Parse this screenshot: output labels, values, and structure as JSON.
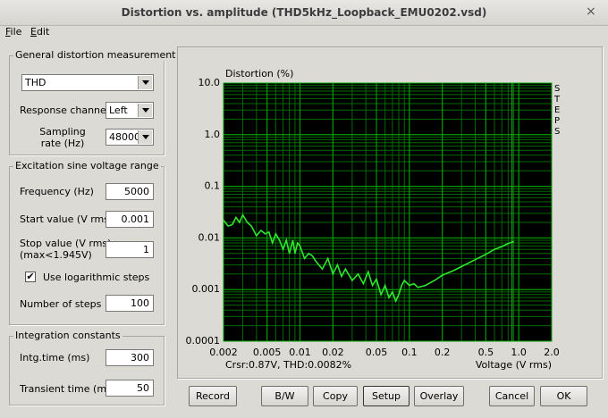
{
  "window": {
    "title": "Distortion vs. amplitude (THD5kHz_Loopback_EMU0202.vsd)",
    "close": "×"
  },
  "menu": [
    "File",
    "Edit"
  ],
  "general": {
    "legend": "General distortion measurement",
    "measurement": "THD",
    "channel_label": "Response channel",
    "channel": "Left",
    "rate_label": "Sampling rate (Hz)",
    "rate": 48000
  },
  "excitation": {
    "legend": "Excitation sine voltage range",
    "frequency_label": "Frequency (Hz)",
    "frequency": 5000,
    "start_label": "Start value (V rms)",
    "start": 0.001,
    "stop_label": "Stop value (V rms)",
    "stop_note": "(max<1.945V)",
    "stop": 1,
    "log_label": "Use logarithmic steps",
    "log_checked": true,
    "steps_label": "Number of steps",
    "steps": 100
  },
  "integration": {
    "legend": "Integration constants",
    "intg_label": "Intg.time (ms)",
    "intg": 300,
    "transient_label": "Transient time (ms)",
    "transient": 50
  },
  "buttons": [
    "Record",
    "B/W",
    "Copy",
    "Setup",
    "Overlay",
    "Cancel",
    "OK"
  ],
  "chart_data": {
    "type": "line",
    "ylabel": "Distortion (%)",
    "xlabel": "Voltage (V rms)",
    "side_label": "STEPS",
    "xscale": "log",
    "yscale": "log",
    "grid": true,
    "color": "#2ee82e",
    "xlim": [
      0.002,
      2
    ],
    "ylim": [
      0.0001,
      10
    ],
    "xticks": [
      0.002,
      0.005,
      0.01,
      0.02,
      0.05,
      0.1,
      0.2,
      0.5,
      {
        "value": 1,
        "label": "1.0"
      },
      {
        "value": 2,
        "label": "2.0"
      }
    ],
    "yticks": [
      {
        "value": 10,
        "label": "10.0"
      },
      {
        "value": 1,
        "label": "1.0"
      },
      0.1,
      0.01,
      0.001,
      0.0001
    ],
    "cursor": {
      "x": 0.87,
      "label": "Crsr:0.87V, THD:0.0082%"
    },
    "x": [
      0.002,
      0.0022,
      0.0024,
      0.0026,
      0.0028,
      0.003,
      0.0033,
      0.0036,
      0.004,
      0.0044,
      0.0048,
      0.0052,
      0.0056,
      0.006,
      0.0065,
      0.007,
      0.0075,
      0.008,
      0.0086,
      0.009,
      0.0095,
      0.01,
      0.011,
      0.012,
      0.013,
      0.014,
      0.016,
      0.018,
      0.02,
      0.022,
      0.024,
      0.026,
      0.03,
      0.034,
      0.038,
      0.042,
      0.046,
      0.05,
      0.055,
      0.06,
      0.065,
      0.07,
      0.075,
      0.08,
      0.085,
      0.09,
      0.1,
      0.11,
      0.12,
      0.14,
      0.17,
      0.2,
      0.25,
      0.3,
      0.4,
      0.5,
      0.6,
      0.7,
      0.8,
      0.9
    ],
    "values": [
      0.022,
      0.017,
      0.018,
      0.025,
      0.02,
      0.028,
      0.02,
      0.017,
      0.011,
      0.014,
      0.012,
      0.013,
      0.008,
      0.012,
      0.009,
      0.006,
      0.009,
      0.005,
      0.009,
      0.005,
      0.008,
      0.007,
      0.004,
      0.005,
      0.0045,
      0.0035,
      0.0025,
      0.004,
      0.002,
      0.003,
      0.0018,
      0.0025,
      0.0015,
      0.002,
      0.0013,
      0.0022,
      0.0012,
      0.0016,
      0.0008,
      0.0012,
      0.0007,
      0.0009,
      0.0006,
      0.0008,
      0.0012,
      0.0015,
      0.0012,
      0.0013,
      0.0011,
      0.0012,
      0.0015,
      0.0019,
      0.0023,
      0.0028,
      0.0038,
      0.0048,
      0.006,
      0.0068,
      0.0078,
      0.0085
    ]
  }
}
